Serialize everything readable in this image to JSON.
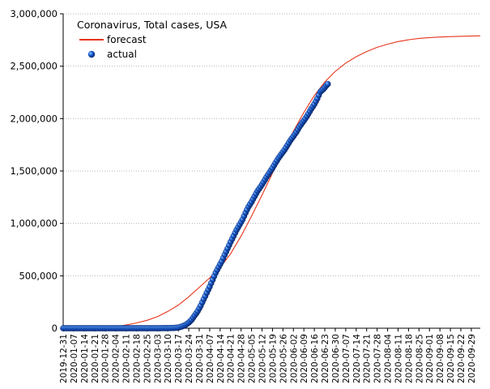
{
  "chart_data": {
    "type": "line",
    "title": "Coronavirus, Total cases, USA",
    "xlabel": "",
    "ylabel": "",
    "xlim": [
      "2019-12-31",
      "2020-10-05"
    ],
    "ylim": [
      0,
      3000000
    ],
    "y_ticks": [
      0,
      500000,
      1000000,
      1500000,
      2000000,
      2500000,
      3000000
    ],
    "y_tick_labels": [
      "0",
      "500,000",
      "1,000,000",
      "1,500,000",
      "2,000,000",
      "2,500,000",
      "3,000,000"
    ],
    "x_ticks": [
      "2019-12-31",
      "2020-01-07",
      "2020-01-14",
      "2020-01-21",
      "2020-01-28",
      "2020-02-04",
      "2020-02-11",
      "2020-02-18",
      "2020-02-25",
      "2020-03-03",
      "2020-03-10",
      "2020-03-17",
      "2020-03-24",
      "2020-03-31",
      "2020-04-07",
      "2020-04-14",
      "2020-04-21",
      "2020-04-28",
      "2020-05-05",
      "2020-05-12",
      "2020-05-19",
      "2020-05-26",
      "2020-06-02",
      "2020-06-09",
      "2020-06-16",
      "2020-06-23",
      "2020-06-30",
      "2020-07-07",
      "2020-07-14",
      "2020-07-21",
      "2020-07-28",
      "2020-08-04",
      "2020-08-11",
      "2020-08-18",
      "2020-08-25",
      "2020-09-01",
      "2020-09-08",
      "2020-09-15",
      "2020-09-22",
      "2020-09-29"
    ],
    "grid": true,
    "legend": "top-left",
    "colors": {
      "forecast": "#e8341c",
      "actual": "#1a5fd6"
    },
    "series": [
      {
        "name": "forecast",
        "style": "line",
        "x": [
          "2020-01-28",
          "2020-02-04",
          "2020-02-11",
          "2020-02-18",
          "2020-02-25",
          "2020-03-03",
          "2020-03-10",
          "2020-03-17",
          "2020-03-24",
          "2020-03-31",
          "2020-04-07",
          "2020-04-14",
          "2020-04-21",
          "2020-04-28",
          "2020-05-05",
          "2020-05-12",
          "2020-05-19",
          "2020-05-26",
          "2020-06-02",
          "2020-06-09",
          "2020-06-16",
          "2020-06-23",
          "2020-06-30",
          "2020-07-07",
          "2020-07-14",
          "2020-07-21",
          "2020-07-28",
          "2020-08-04",
          "2020-08-11",
          "2020-08-18",
          "2020-08-25",
          "2020-09-01",
          "2020-09-08",
          "2020-09-15",
          "2020-09-22",
          "2020-09-29",
          "2020-10-05"
        ],
        "y": [
          5000,
          15000,
          30000,
          50000,
          75000,
          110000,
          160000,
          220000,
          300000,
          390000,
          480000,
          580000,
          710000,
          880000,
          1070000,
          1270000,
          1480000,
          1680000,
          1880000,
          2060000,
          2220000,
          2350000,
          2450000,
          2530000,
          2590000,
          2640000,
          2680000,
          2710000,
          2735000,
          2752000,
          2765000,
          2773000,
          2778000,
          2782000,
          2785000,
          2788000,
          2790000
        ]
      },
      {
        "name": "actual",
        "style": "points",
        "x": [
          "2019-12-31",
          "2020-01-07",
          "2020-01-14",
          "2020-01-21",
          "2020-01-28",
          "2020-02-04",
          "2020-02-11",
          "2020-02-18",
          "2020-02-25",
          "2020-03-03",
          "2020-03-10",
          "2020-03-14",
          "2020-03-17",
          "2020-03-20",
          "2020-03-22",
          "2020-03-24",
          "2020-03-26",
          "2020-03-28",
          "2020-03-30",
          "2020-04-01",
          "2020-04-03",
          "2020-04-05",
          "2020-04-07",
          "2020-04-09",
          "2020-04-11",
          "2020-04-13",
          "2020-04-15",
          "2020-04-17",
          "2020-04-19",
          "2020-04-21",
          "2020-04-23",
          "2020-04-25",
          "2020-04-27",
          "2020-04-29",
          "2020-05-01",
          "2020-05-03",
          "2020-05-05",
          "2020-05-07",
          "2020-05-09",
          "2020-05-11",
          "2020-05-13",
          "2020-05-15",
          "2020-05-17",
          "2020-05-19",
          "2020-05-21",
          "2020-05-23",
          "2020-05-25",
          "2020-05-27",
          "2020-05-29",
          "2020-05-31",
          "2020-06-02",
          "2020-06-04",
          "2020-06-06",
          "2020-06-08",
          "2020-06-10",
          "2020-06-12",
          "2020-06-14",
          "2020-06-16",
          "2020-06-18",
          "2020-06-20",
          "2020-06-22",
          "2020-06-24",
          "2020-06-25"
        ],
        "y": [
          0,
          0,
          0,
          0,
          0,
          10,
          15,
          20,
          60,
          100,
          1000,
          2700,
          6400,
          19000,
          33000,
          53000,
          82000,
          122000,
          163000,
          215000,
          276000,
          337000,
          396000,
          462000,
          529000,
          584000,
          636000,
          700000,
          760000,
          823000,
          880000,
          938000,
          988000,
          1038000,
          1101000,
          1160000,
          1205000,
          1257000,
          1309000,
          1349000,
          1393000,
          1442000,
          1486000,
          1528000,
          1577000,
          1623000,
          1662000,
          1700000,
          1746000,
          1792000,
          1831000,
          1872000,
          1920000,
          1961000,
          2000000,
          2046000,
          2094000,
          2137000,
          2191000,
          2255000,
          2280000,
          2315000,
          2330000
        ]
      }
    ]
  }
}
